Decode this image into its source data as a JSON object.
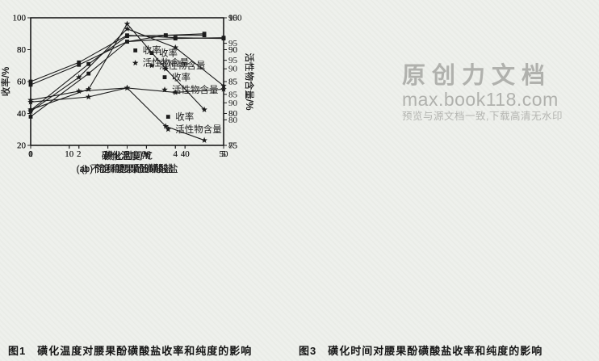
{
  "page": {
    "background": "#eef0ec",
    "ink": "#1c1c1c"
  },
  "watermark": {
    "title": "原创力文档",
    "site": "max.book118.com",
    "note": "预览与源文档一致,下载高清无水印",
    "color": "#b0b1ad"
  },
  "figures": [
    {
      "caption_label": "图1",
      "caption_text": "磺化温度对腰果酚磺酸盐收率和纯度的影响"
    },
    {
      "caption_label": "图3",
      "caption_text": "磺化时间对腰果酚磺酸盐收率和纯度的影响"
    }
  ],
  "chart_data": [
    {
      "type": "line",
      "figure": "图1",
      "title": "(a) 不饱和腰果酚磺酸盐",
      "xlabel": "磺化温度/℃",
      "xlim": [
        0,
        50
      ],
      "x_ticks": [
        0,
        10,
        20,
        30,
        40,
        50
      ],
      "x": [
        0,
        15,
        25,
        35,
        45
      ],
      "left_axis": {
        "label": "收率/%",
        "lim": [
          20,
          100
        ],
        "ticks": [
          20,
          40,
          60,
          80,
          100
        ]
      },
      "right_axis": {
        "label": "活性物含量/%",
        "lim": [
          75,
          95
        ],
        "ticks": [
          75,
          80,
          85,
          90,
          95
        ]
      },
      "series": [
        {
          "name": "收率",
          "axis": "left",
          "marker": "square",
          "values": [
            38,
            65,
            85,
            89,
            89
          ]
        },
        {
          "name": "活性物含量",
          "axis": "right",
          "marker": "star",
          "values": [
            81.8,
            82.6,
            84,
            78,
            75.8
          ]
        }
      ],
      "grid": false,
      "legend_pos": {
        "fx": 0.53,
        "fy": 0.28
      }
    },
    {
      "type": "line",
      "figure": "图1",
      "title": "(b) 饱和腰果酚磺酸盐",
      "xlabel": "磺化温度/℃",
      "xlim": [
        0,
        50
      ],
      "x_ticks": [
        0,
        10,
        20,
        30,
        40,
        50
      ],
      "x": [
        0,
        15,
        25,
        35,
        45
      ],
      "left_axis": {
        "label": "收率/%",
        "lim": [
          20,
          100
        ],
        "ticks": [
          20,
          40,
          60,
          80,
          100
        ]
      },
      "right_axis": {
        "label": "活性物含量/%",
        "lim": [
          75,
          100
        ],
        "ticks": [
          75,
          80,
          85,
          90,
          95,
          100
        ]
      },
      "series": [
        {
          "name": "收率",
          "axis": "left",
          "marker": "square",
          "values": [
            42,
            71,
            88.5,
            89,
            90
          ]
        },
        {
          "name": "活性物含量",
          "axis": "right",
          "marker": "star",
          "values": [
            82,
            86,
            98.8,
            90,
            82
          ]
        }
      ],
      "grid": false,
      "legend_pos": {
        "fx": 0.7,
        "fy": 0.8
      }
    },
    {
      "type": "line",
      "figure": "图3",
      "title": "(a) 不饱和腰果酚磺酸盐",
      "xlabel": "磺化时间/h",
      "xlim": [
        1,
        5
      ],
      "x_ticks": [
        1,
        2,
        3,
        4,
        5
      ],
      "x": [
        1,
        2,
        3,
        4,
        5
      ],
      "left_axis": {
        "label": "收率/%",
        "lim": [
          20,
          100
        ],
        "ticks": [
          20,
          40,
          60,
          80,
          100
        ]
      },
      "right_axis": {
        "label": "活性物含量/%",
        "lim": [
          75,
          95
        ],
        "ticks": [
          75,
          80,
          85,
          90,
          95
        ]
      },
      "series": [
        {
          "name": "收率",
          "axis": "left",
          "marker": "square",
          "values": [
            58,
            70.5,
            85,
            87,
            87.5
          ]
        },
        {
          "name": "活性物含量",
          "axis": "right",
          "marker": "star",
          "values": [
            82.1,
            83.5,
            84,
            83.3,
            83.8
          ]
        }
      ],
      "grid": false,
      "legend_pos": {
        "fx": 0.615,
        "fy": 0.3
      }
    },
    {
      "type": "line",
      "figure": "图3",
      "title": "(b) 饱和腰果酚磺酸盐",
      "xlabel": "磺化时间/h",
      "xlim": [
        1,
        5
      ],
      "x_ticks": [
        1,
        2,
        3,
        4,
        5
      ],
      "x": [
        1,
        2,
        3,
        4,
        5
      ],
      "left_axis": {
        "label": "收率/%",
        "lim": [
          20,
          100
        ],
        "ticks": [
          20,
          40,
          60,
          80,
          100
        ]
      },
      "right_axis": {
        "label": "活性物含量/%",
        "lim": [
          85,
          100
        ],
        "ticks": [
          85,
          90,
          95,
          100
        ]
      },
      "series": [
        {
          "name": "收率",
          "axis": "left",
          "marker": "square",
          "values": [
            60,
            72,
            89,
            87.5,
            87
          ]
        },
        {
          "name": "活性物含量",
          "axis": "right",
          "marker": "star",
          "values": [
            89,
            93,
            98.7,
            96.5,
            92
          ]
        }
      ],
      "grid": false,
      "legend_pos": {
        "fx": 0.682,
        "fy": 0.49
      }
    }
  ]
}
